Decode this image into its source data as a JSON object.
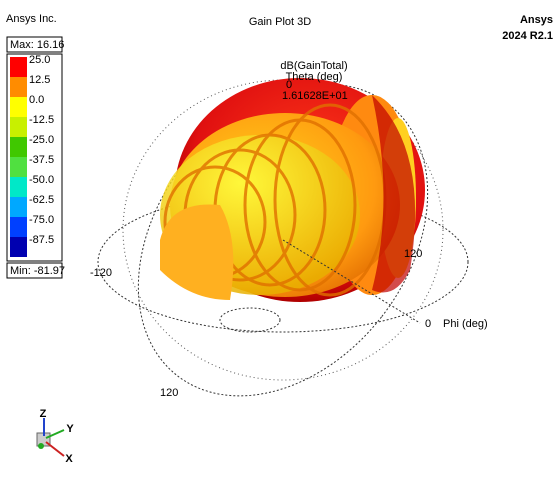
{
  "header": {
    "company": "Ansys Inc.",
    "title": "Gain Plot 3D",
    "brand": "Ansys",
    "version": "2024 R2.1"
  },
  "legend": {
    "max": "Max: 16.16",
    "min": "Min: -81.97",
    "labels": [
      "25.0",
      "12.5",
      "0.0",
      "-12.5",
      "-25.0",
      "-37.5",
      "-50.0",
      "-62.5",
      "-75.0",
      "-87.5"
    ]
  },
  "plot": {
    "quantity": "dB(GainTotal)",
    "theta_label": "Theta (deg)",
    "theta_zero": "0",
    "peak": "1.61628E+01",
    "phi_120": "120",
    "phi_minus_120": "-120",
    "phi_zero": "0",
    "phi_label": "Phi (deg)",
    "theta_120": "120"
  },
  "triad": {
    "z": "Z",
    "y": "Y",
    "x": "X"
  }
}
